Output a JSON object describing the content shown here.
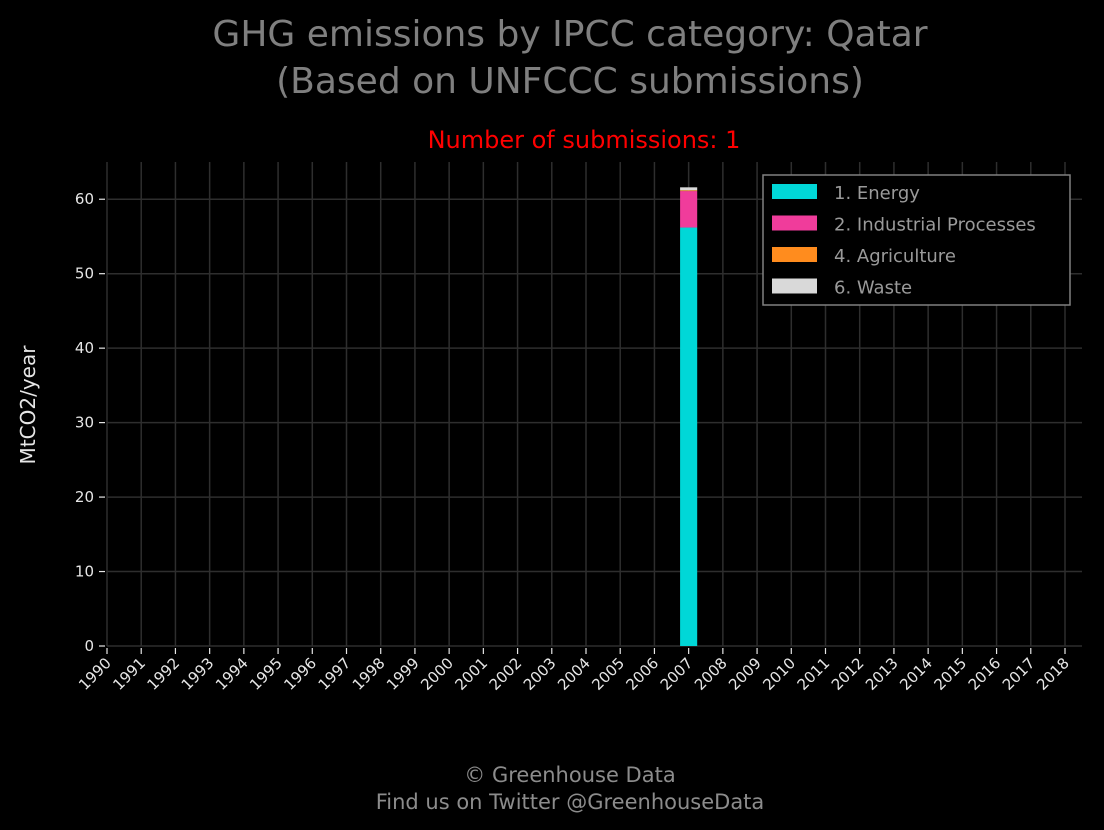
{
  "chart_data": {
    "type": "bar",
    "stacked": true,
    "title_line1": "GHG emissions by IPCC category: Qatar",
    "title_line2": "(Based on UNFCCC submissions)",
    "subtitle": "Number of submissions: 1",
    "xlabel": "",
    "ylabel": "MtCO2/year",
    "ylim": [
      0,
      65
    ],
    "yticks": [
      0,
      10,
      20,
      30,
      40,
      50,
      60
    ],
    "grid": true,
    "legend_position": "top-right",
    "categories": [
      "1990",
      "1991",
      "1992",
      "1993",
      "1994",
      "1995",
      "1996",
      "1997",
      "1998",
      "1999",
      "2000",
      "2001",
      "2002",
      "2003",
      "2004",
      "2005",
      "2006",
      "2007",
      "2008",
      "2009",
      "2010",
      "2011",
      "2012",
      "2013",
      "2014",
      "2015",
      "2016",
      "2017",
      "2018"
    ],
    "series": [
      {
        "name": "1. Energy",
        "color": "#00d7d7",
        "values": [
          null,
          null,
          null,
          null,
          null,
          null,
          null,
          null,
          null,
          null,
          null,
          null,
          null,
          null,
          null,
          null,
          null,
          56.2,
          null,
          null,
          null,
          null,
          null,
          null,
          null,
          null,
          null,
          null,
          null
        ]
      },
      {
        "name": "2. Industrial Processes",
        "color": "#f03c9b",
        "values": [
          null,
          null,
          null,
          null,
          null,
          null,
          null,
          null,
          null,
          null,
          null,
          null,
          null,
          null,
          null,
          null,
          null,
          4.9,
          null,
          null,
          null,
          null,
          null,
          null,
          null,
          null,
          null,
          null,
          null
        ]
      },
      {
        "name": "4. Agriculture",
        "color": "#ff8c1e",
        "values": [
          null,
          null,
          null,
          null,
          null,
          null,
          null,
          null,
          null,
          null,
          null,
          null,
          null,
          null,
          null,
          null,
          null,
          0.1,
          null,
          null,
          null,
          null,
          null,
          null,
          null,
          null,
          null,
          null,
          null
        ]
      },
      {
        "name": "6. Waste",
        "color": "#d9d9d9",
        "values": [
          null,
          null,
          null,
          null,
          null,
          null,
          null,
          null,
          null,
          null,
          null,
          null,
          null,
          null,
          null,
          null,
          null,
          0.4,
          null,
          null,
          null,
          null,
          null,
          null,
          null,
          null,
          null,
          null,
          null
        ]
      }
    ]
  },
  "footer": {
    "line1": "© Greenhouse Data",
    "line2": "Find us on Twitter @GreenhouseData"
  }
}
